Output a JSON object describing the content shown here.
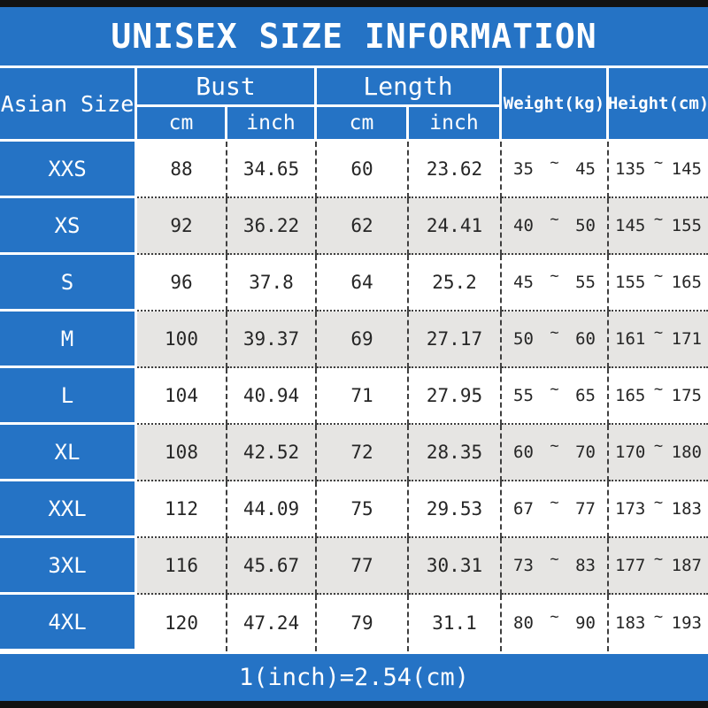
{
  "title": "UNISEX SIZE INFORMATION",
  "colors": {
    "blue": "#2573c5",
    "row_alt": "#e6e5e3",
    "line": "#3f3f3f",
    "ink": "#262626",
    "bar": "#121212"
  },
  "table": {
    "col_asian": "Asian Size",
    "group_bust": "Bust",
    "group_length": "Length",
    "sub_cm": "cm",
    "sub_inch": "inch",
    "col_weight": "Weight(kg)",
    "col_height": "Height(cm)"
  },
  "rows": [
    {
      "size": "XXS",
      "bust_cm": "88",
      "bust_inch": "34.65",
      "length_cm": "60",
      "length_inch": "23.62",
      "weight_min": "35",
      "weight_max": "45",
      "height_min": "135",
      "height_max": "145",
      "tilde": "~"
    },
    {
      "size": "XS",
      "bust_cm": "92",
      "bust_inch": "36.22",
      "length_cm": "62",
      "length_inch": "24.41",
      "weight_min": "40",
      "weight_max": "50",
      "height_min": "145",
      "height_max": "155",
      "tilde": "~"
    },
    {
      "size": "S",
      "bust_cm": "96",
      "bust_inch": "37.8",
      "length_cm": "64",
      "length_inch": "25.2",
      "weight_min": "45",
      "weight_max": "55",
      "height_min": "155",
      "height_max": "165",
      "tilde": "~"
    },
    {
      "size": "M",
      "bust_cm": "100",
      "bust_inch": "39.37",
      "length_cm": "69",
      "length_inch": "27.17",
      "weight_min": "50",
      "weight_max": "60",
      "height_min": "161",
      "height_max": "171",
      "tilde": "~"
    },
    {
      "size": "L",
      "bust_cm": "104",
      "bust_inch": "40.94",
      "length_cm": "71",
      "length_inch": "27.95",
      "weight_min": "55",
      "weight_max": "65",
      "height_min": "165",
      "height_max": "175",
      "tilde": "~"
    },
    {
      "size": "XL",
      "bust_cm": "108",
      "bust_inch": "42.52",
      "length_cm": "72",
      "length_inch": "28.35",
      "weight_min": "60",
      "weight_max": "70",
      "height_min": "170",
      "height_max": "180",
      "tilde": "~"
    },
    {
      "size": "XXL",
      "bust_cm": "112",
      "bust_inch": "44.09",
      "length_cm": "75",
      "length_inch": "29.53",
      "weight_min": "67",
      "weight_max": "77",
      "height_min": "173",
      "height_max": "183",
      "tilde": "~"
    },
    {
      "size": "3XL",
      "bust_cm": "116",
      "bust_inch": "45.67",
      "length_cm": "77",
      "length_inch": "30.31",
      "weight_min": "73",
      "weight_max": "83",
      "height_min": "177",
      "height_max": "187",
      "tilde": "~"
    },
    {
      "size": "4XL",
      "bust_cm": "120",
      "bust_inch": "47.24",
      "length_cm": "79",
      "length_inch": "31.1",
      "weight_min": "80",
      "weight_max": "90",
      "height_min": "183",
      "height_max": "193",
      "tilde": "~"
    }
  ],
  "footer": {
    "note": "1(inch)=2.54(cm)"
  },
  "chart_data": {
    "type": "table",
    "title": "UNISEX SIZE INFORMATION",
    "columns": [
      "Asian Size",
      "Bust cm",
      "Bust inch",
      "Length cm",
      "Length inch",
      "Weight(kg)",
      "Height(cm)"
    ],
    "rows": [
      [
        "XXS",
        88,
        34.65,
        60,
        23.62,
        "35~45",
        "135~145"
      ],
      [
        "XS",
        92,
        36.22,
        62,
        24.41,
        "40~50",
        "145~155"
      ],
      [
        "S",
        96,
        37.8,
        64,
        25.2,
        "45~55",
        "155~165"
      ],
      [
        "M",
        100,
        39.37,
        69,
        27.17,
        "50~60",
        "161~171"
      ],
      [
        "L",
        104,
        40.94,
        71,
        27.95,
        "55~65",
        "165~175"
      ],
      [
        "XL",
        108,
        42.52,
        72,
        28.35,
        "60~70",
        "170~180"
      ],
      [
        "XXL",
        112,
        44.09,
        75,
        29.53,
        "67~77",
        "173~183"
      ],
      [
        "3XL",
        116,
        45.67,
        77,
        30.31,
        "73~83",
        "177~187"
      ],
      [
        "4XL",
        120,
        47.24,
        79,
        31.1,
        "80~90",
        "183~193"
      ]
    ],
    "note": "1(inch)=2.54(cm)"
  }
}
